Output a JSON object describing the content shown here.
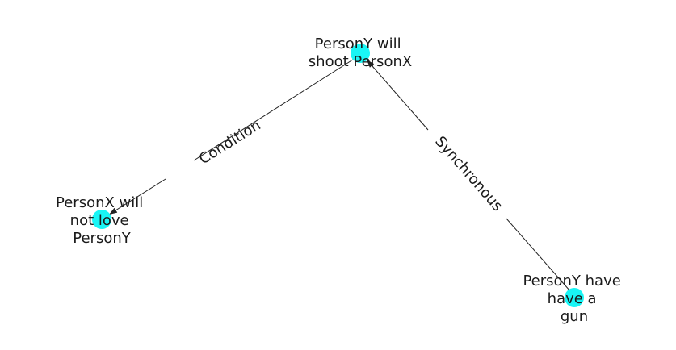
{
  "colors": {
    "node_fill": "#19f5f5",
    "edge_stroke": "#222222",
    "text": "#1a1a1a",
    "background": "#ffffff"
  },
  "nodes": [
    {
      "id": "n1",
      "lines": [
        "PersonY will",
        "shoot PersonX"
      ]
    },
    {
      "id": "n2",
      "lines": [
        "PersonX will",
        "not love",
        "PersonY"
      ]
    },
    {
      "id": "n3",
      "lines": [
        "PersonY have",
        "have a",
        "gun"
      ]
    }
  ],
  "edges": [
    {
      "from": "n1",
      "to": "n2",
      "label": "Condition"
    },
    {
      "from": "n3",
      "to": "n1",
      "label": "Synchronous"
    }
  ]
}
